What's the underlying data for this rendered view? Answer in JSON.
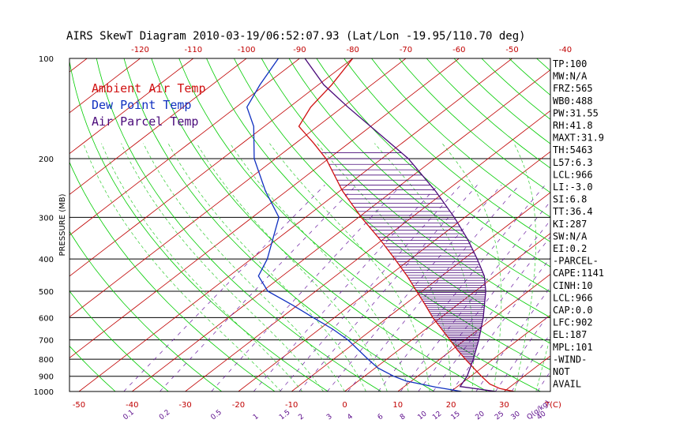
{
  "title": "AIRS SkewT Diagram 2010-03-19/06:52:07.93 (Lat/Lon -19.95/110.70 deg)",
  "ylabel": "PRESSURE (MB)",
  "colors": {
    "ambient": "#d01010",
    "dewpoint": "#1030c0",
    "parcel": "#4a0a7a",
    "isotherm": "#c00000",
    "dry_adiabat": "#00cc00",
    "moist_adiabat": "#33cc33",
    "mixing_ratio": "#6a1aa0",
    "isobar": "#000000"
  },
  "legend": [
    {
      "label": "Ambient Air Temp",
      "color": "#d01010"
    },
    {
      "label": "Dew Point Temp",
      "color": "#1030c0"
    },
    {
      "label": "Air Parcel Temp",
      "color": "#4a0a7a"
    }
  ],
  "indices": [
    "TP:100",
    "MW:N/A",
    "FRZ:565",
    "WB0:488",
    "PW:31.55",
    "RH:41.8",
    "MAXT:31.9",
    "TH:5463",
    "L57:6.3",
    "LCL:966",
    "LI:-3.0",
    "SI:6.8",
    "TT:36.4",
    "KI:287",
    "SW:N/A",
    "EI:0.2",
    "-PARCEL-",
    "CAPE:1141",
    "CINH:10",
    "LCL:966",
    "CAP:0.0",
    "LFC:902",
    "EL:187",
    "MPL:101",
    "-WIND-",
    "NOT",
    "AVAIL"
  ],
  "chart_data": {
    "type": "line",
    "title": "AIRS SkewT Diagram 2010-03-19/06:52:07.93 (Lat/Lon -19.95/110.70 deg)",
    "ylabel": "PRESSURE (MB)",
    "xlabel": "T(C)",
    "y_scale": "log",
    "pressure_ticks": [
      "100",
      "200",
      "300",
      "400",
      "500",
      "600",
      "700",
      "800",
      "900",
      "1000"
    ],
    "bottom_temp_ticks": [
      "-50",
      "-40",
      "-30",
      "-20",
      "-10",
      "0",
      "10",
      "20",
      "30"
    ],
    "top_temp_ticks": [
      "-120",
      "-110",
      "-100",
      "-90",
      "-80",
      "-70",
      "-60",
      "-50",
      "-40"
    ],
    "mixing_ratio_labels": [
      "0.1",
      "0.2",
      "0.5",
      "1",
      "1.5",
      "2",
      "3",
      "4",
      "6",
      "8",
      "10",
      "12",
      "15",
      "20",
      "25",
      "30",
      "40"
    ],
    "mixing_ratio_unit": "Q(g/kg)",
    "ylim": [
      1000,
      100
    ],
    "series": [
      {
        "name": "Ambient Air Temp",
        "points": [
          [
            1000,
            31.9
          ],
          [
            980,
            28.5
          ],
          [
            950,
            25.5
          ],
          [
            900,
            22.0
          ],
          [
            850,
            18.5
          ],
          [
            800,
            14.8
          ],
          [
            750,
            11.0
          ],
          [
            700,
            7.2
          ],
          [
            650,
            3.0
          ],
          [
            600,
            -1.5
          ],
          [
            550,
            -6.0
          ],
          [
            500,
            -11.0
          ],
          [
            450,
            -16.5
          ],
          [
            400,
            -23.0
          ],
          [
            350,
            -30.5
          ],
          [
            300,
            -39.5
          ],
          [
            250,
            -49.5
          ],
          [
            200,
            -60.5
          ],
          [
            180,
            -66.5
          ],
          [
            160,
            -73.5
          ],
          [
            140,
            -76.0
          ],
          [
            120,
            -77.5
          ],
          [
            100,
            -80.0
          ]
        ]
      },
      {
        "name": "Dew Point Temp",
        "points": [
          [
            1000,
            22.0
          ],
          [
            970,
            16.0
          ],
          [
            930,
            9.0
          ],
          [
            900,
            5.5
          ],
          [
            850,
            0.5
          ],
          [
            800,
            -3.5
          ],
          [
            700,
            -12.0
          ],
          [
            650,
            -17.5
          ],
          [
            600,
            -24.0
          ],
          [
            550,
            -31.0
          ],
          [
            500,
            -39.0
          ],
          [
            450,
            -44.5
          ],
          [
            400,
            -47.0
          ],
          [
            300,
            -55.0
          ],
          [
            250,
            -64.0
          ],
          [
            200,
            -74.0
          ],
          [
            160,
            -82.0
          ],
          [
            140,
            -88.0
          ],
          [
            120,
            -91.0
          ],
          [
            100,
            -94.0
          ]
        ]
      },
      {
        "name": "Air Parcel Temp",
        "points": [
          [
            1000,
            28.5
          ],
          [
            966,
            20.5
          ],
          [
            900,
            19.3
          ],
          [
            800,
            16.3
          ],
          [
            700,
            12.6
          ],
          [
            600,
            8.0
          ],
          [
            500,
            2.0
          ],
          [
            450,
            -2.0
          ],
          [
            400,
            -7.5
          ],
          [
            350,
            -14.0
          ],
          [
            300,
            -22.0
          ],
          [
            250,
            -32.0
          ],
          [
            200,
            -45.0
          ],
          [
            187,
            -49.5
          ],
          [
            160,
            -60.0
          ],
          [
            140,
            -69.0
          ],
          [
            120,
            -79.0
          ],
          [
            100,
            -89.0
          ]
        ]
      }
    ]
  }
}
